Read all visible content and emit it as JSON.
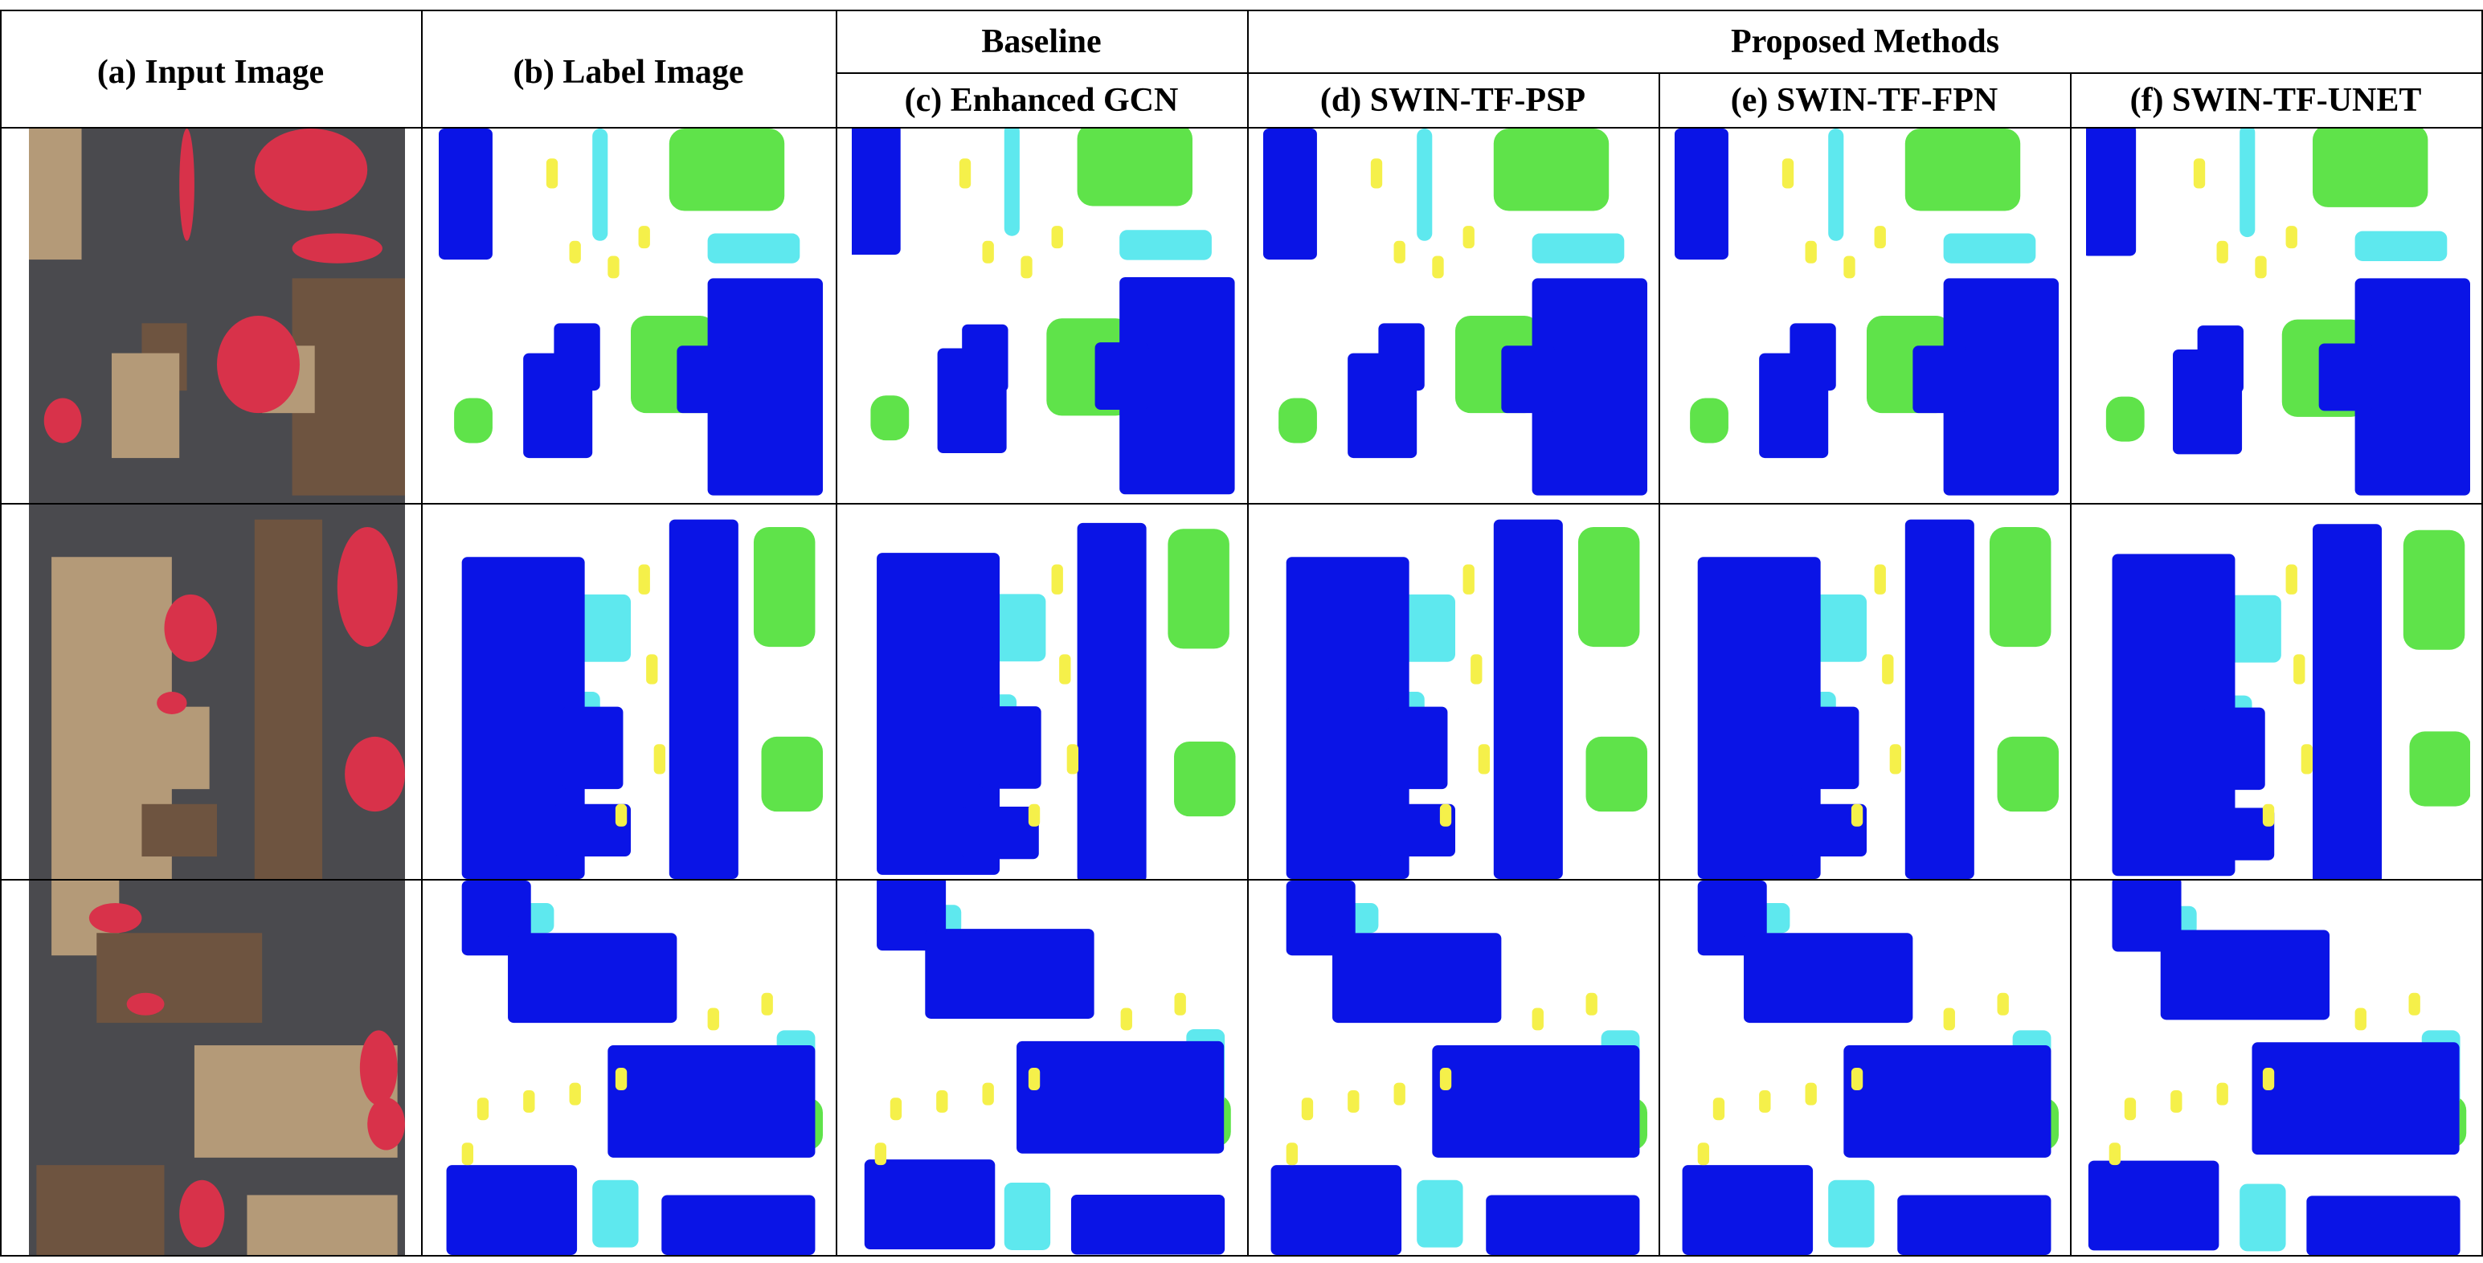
{
  "figure": {
    "headers": {
      "input": "(a)  Input Image",
      "label": "(b)  Label Image",
      "baseline_group": "Baseline",
      "proposed_group": "Proposed Methods",
      "gcn": "(c)  Enhanced GCN",
      "psp": "(d)  SWIN-TF-PSP",
      "fpn": "(e)  SWIN-TF-FPN",
      "unet": "(f)  SWIN-TF-UNET"
    },
    "rows": 3,
    "class_colors": {
      "impervious_surface": "#ffffff",
      "building": "#0a14e6",
      "low_vegetation": "#5fe34a",
      "tree": "#5ee8ee",
      "car": "#f5f04a"
    },
    "input_colors": {
      "roof_light": "#b49a78",
      "roof_dark": "#6e5440",
      "street": "#4a4a4e",
      "vegetation": "#d8324a"
    }
  }
}
